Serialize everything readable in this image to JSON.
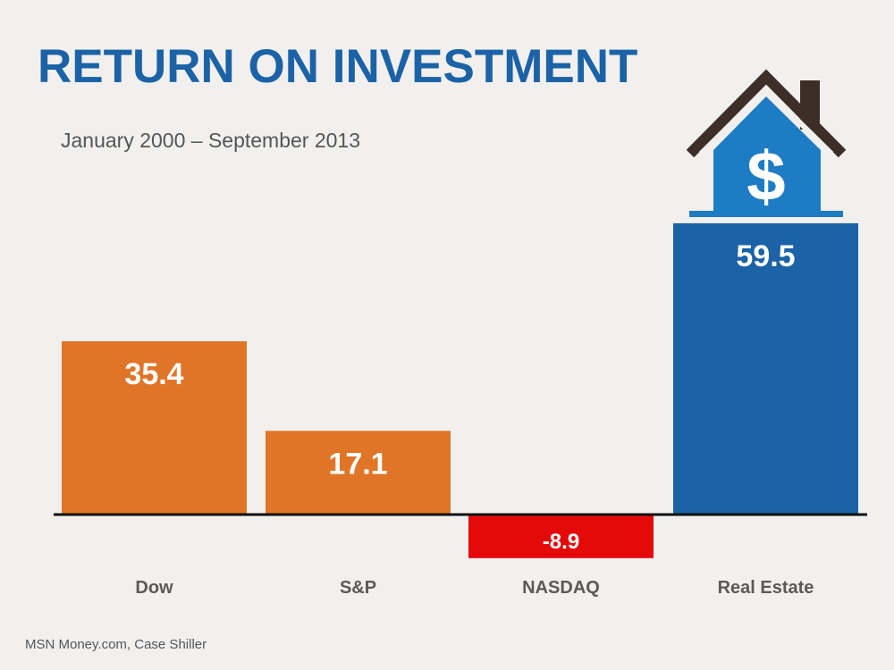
{
  "chart_data": {
    "type": "bar",
    "title": "RETURN ON INVESTMENT",
    "subtitle": "January 2000 – September 2013",
    "categories": [
      "Dow",
      "S&P",
      "NASDAQ",
      "Real Estate"
    ],
    "values": [
      35.4,
      17.1,
      -8.9,
      59.5
    ],
    "data_labels": [
      "35.4",
      "17.1",
      "-8.9",
      "59.5"
    ],
    "colors": [
      "#e07527",
      "#e07527",
      "#e50a0a",
      "#1b62a6"
    ],
    "xlabel": "",
    "ylabel": "",
    "grid": false,
    "source": "MSN Money.com,  Case Shiller",
    "icons": [
      "house-dollar-icon"
    ]
  }
}
